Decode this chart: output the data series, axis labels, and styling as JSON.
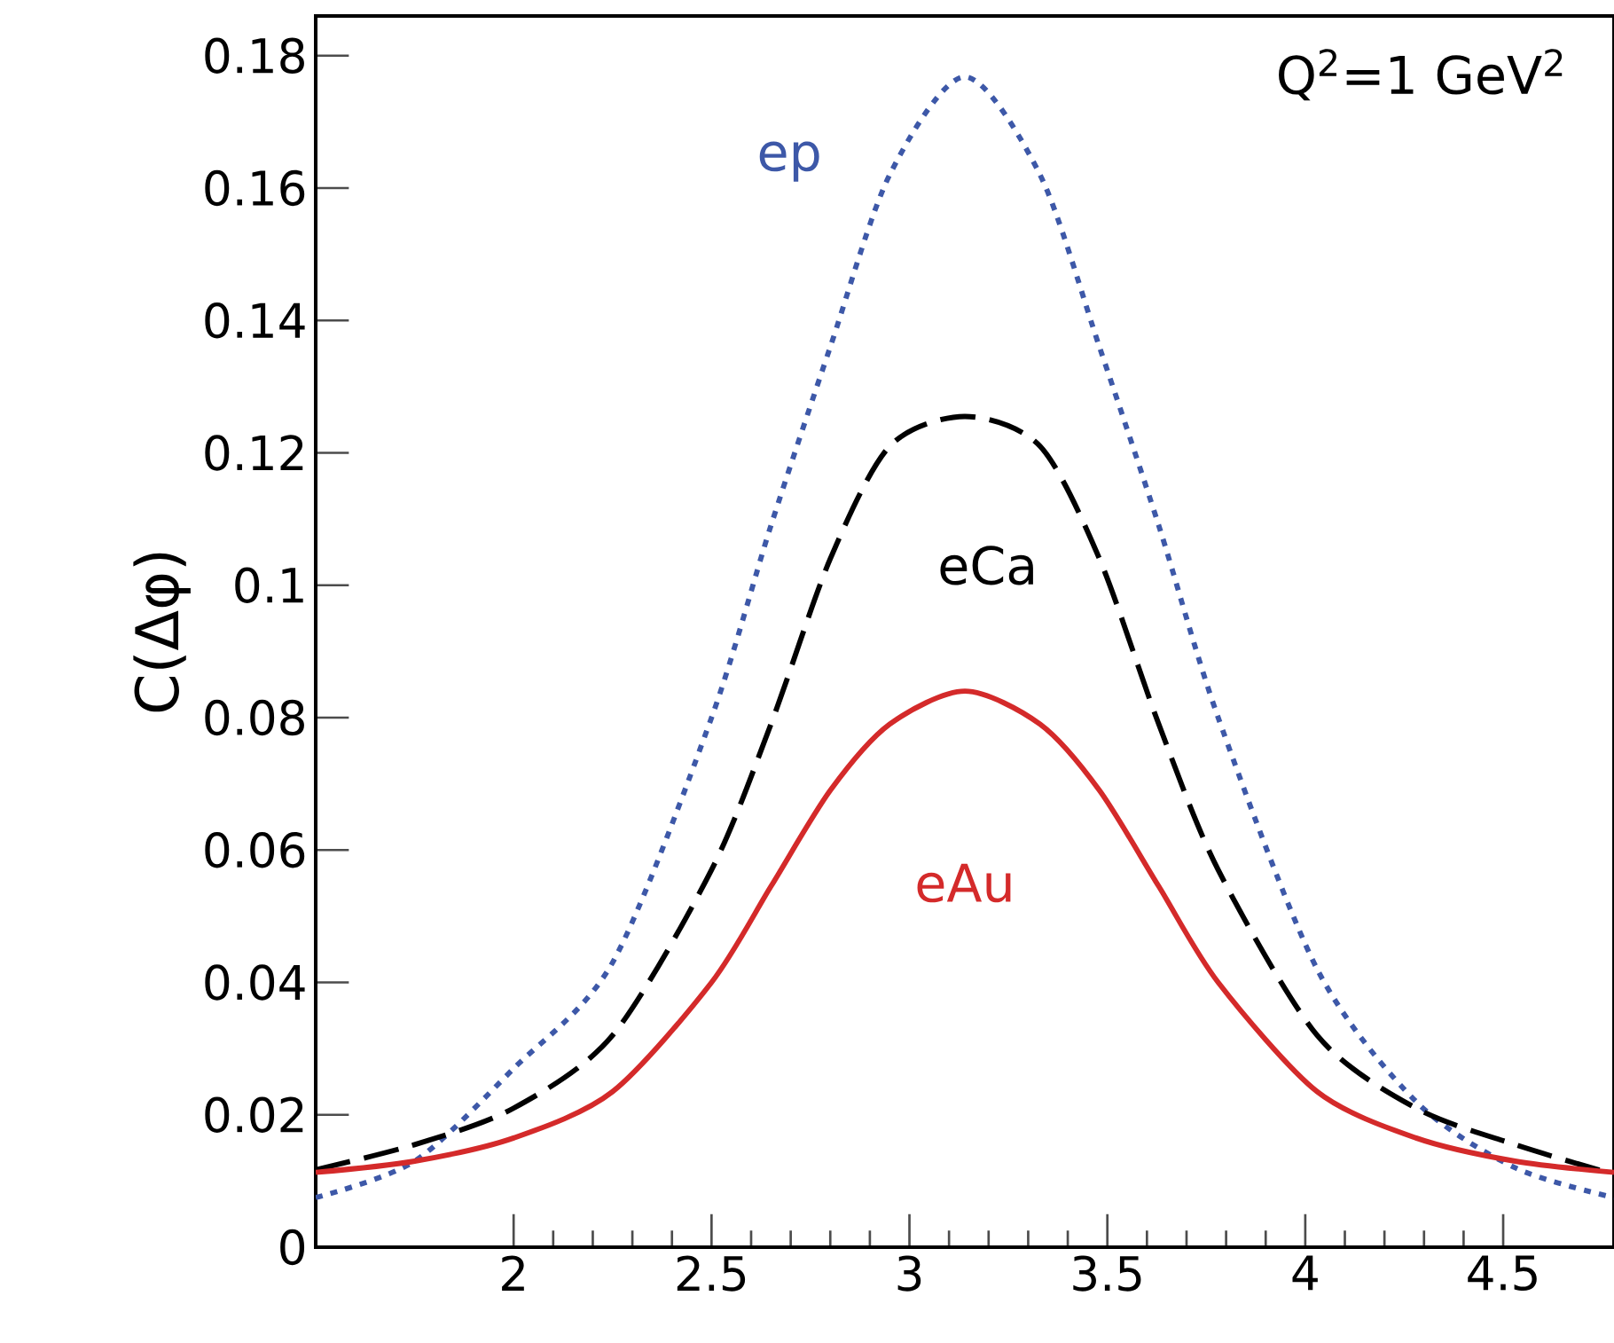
{
  "chart_data": {
    "type": "line",
    "ylabel": "C(Δφ)",
    "annotations": [
      "Q$^{2}$=1 GeV$^{2}$"
    ],
    "x": [
      1.5,
      1.75,
      2.0,
      2.25,
      2.5,
      2.65,
      2.8,
      2.95,
      3.14,
      3.33,
      3.48,
      3.63,
      3.78,
      4.03,
      4.28,
      4.53,
      4.78
    ],
    "series": [
      {
        "name": "ep",
        "color": "#3d58a8",
        "line_style": "dotted",
        "values": [
          0.0075,
          0.013,
          0.027,
          0.043,
          0.08,
          0.109,
          0.136,
          0.162,
          0.1768,
          0.162,
          0.136,
          0.109,
          0.08,
          0.042,
          0.022,
          0.012,
          0.0075
        ]
      },
      {
        "name": "eCa",
        "color": "#000000",
        "line_style": "dashed",
        "values": [
          0.0117,
          0.0155,
          0.021,
          0.032,
          0.057,
          0.079,
          0.104,
          0.121,
          0.1255,
          0.121,
          0.104,
          0.079,
          0.057,
          0.032,
          0.021,
          0.0155,
          0.011
        ]
      },
      {
        "name": "eAu",
        "color": "#d42a2a",
        "line_style": "solid",
        "values": [
          0.0113,
          0.013,
          0.0165,
          0.0235,
          0.04,
          0.0545,
          0.069,
          0.079,
          0.084,
          0.079,
          0.069,
          0.0545,
          0.04,
          0.0235,
          0.0165,
          0.013,
          0.0113
        ]
      }
    ],
    "xlim": [
      1.5,
      4.78
    ],
    "ylim": [
      0,
      0.186
    ],
    "xticks": [
      2,
      2.5,
      3,
      3.5,
      4,
      4.5
    ],
    "yticks": [
      0,
      0.02,
      0.04,
      0.06,
      0.08,
      0.1,
      0.12,
      0.14,
      0.16,
      0.18
    ]
  }
}
